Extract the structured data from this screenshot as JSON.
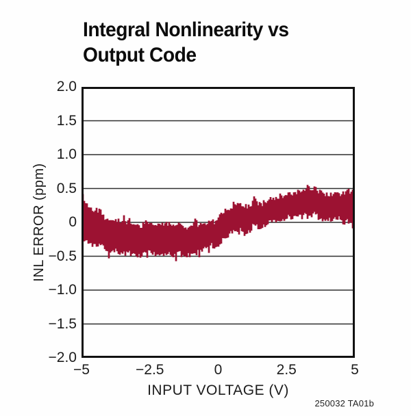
{
  "header": {
    "title_line1": "Integral Nonlinearity vs",
    "title_line2": "Output Code"
  },
  "footnote": "250032 TA01b",
  "chart_data": {
    "type": "area",
    "title": "Integral Nonlinearity vs Output Code",
    "xlabel": "INPUT VOLTAGE (V)",
    "ylabel": "INL ERROR (ppm)",
    "xlim": [
      -5,
      5
    ],
    "ylim": [
      -2.0,
      2.0
    ],
    "xticks": [
      "−5",
      "−2.5",
      "0",
      "2.5",
      "5"
    ],
    "yticks": [
      "2.0",
      "1.5",
      "1.0",
      "0.5",
      "0",
      "−0.5",
      "−1.0",
      "−1.5",
      "−2.0"
    ],
    "grid": "horizontal-only",
    "legend": "none",
    "trace_color": "#9C1232",
    "frame_color": "#111111",
    "grid_color": "#2e2e2e",
    "series": [
      {
        "name": "INL error noisy band (envelope: x, lower ppm, upper ppm)",
        "envelope": [
          [
            -5.0,
            -0.18,
            0.44
          ],
          [
            -4.93,
            -0.26,
            0.3
          ],
          [
            -4.7,
            -0.3,
            0.22
          ],
          [
            -4.5,
            -0.33,
            0.18
          ],
          [
            -4.2,
            -0.37,
            0.1
          ],
          [
            -4.0,
            -0.4,
            0.06
          ],
          [
            -3.75,
            -0.44,
            0.02
          ],
          [
            -3.65,
            -0.48,
            0.01
          ],
          [
            -3.4,
            -0.45,
            0.0
          ],
          [
            -3.0,
            -0.46,
            -0.02
          ],
          [
            -2.5,
            -0.47,
            -0.03
          ],
          [
            -2.0,
            -0.48,
            -0.03
          ],
          [
            -1.5,
            -0.47,
            -0.04
          ],
          [
            -1.2,
            -0.46,
            -0.05
          ],
          [
            -1.0,
            -0.45,
            -0.04
          ],
          [
            -0.7,
            -0.43,
            -0.03
          ],
          [
            -0.4,
            -0.4,
            -0.02
          ],
          [
            -0.15,
            -0.36,
            0.02
          ],
          [
            0.0,
            -0.3,
            0.12
          ],
          [
            0.2,
            -0.22,
            0.18
          ],
          [
            0.4,
            -0.17,
            0.22
          ],
          [
            0.7,
            -0.13,
            0.24
          ],
          [
            1.0,
            -0.11,
            0.26
          ],
          [
            1.3,
            -0.08,
            0.29
          ],
          [
            1.6,
            -0.05,
            0.31
          ],
          [
            2.0,
            -0.02,
            0.33
          ],
          [
            2.4,
            0.02,
            0.36
          ],
          [
            2.8,
            0.05,
            0.4
          ],
          [
            3.1,
            0.08,
            0.44
          ],
          [
            3.35,
            0.1,
            0.53
          ],
          [
            3.5,
            0.11,
            0.49
          ],
          [
            3.9,
            0.06,
            0.45
          ],
          [
            4.2,
            0.07,
            0.44
          ],
          [
            4.5,
            0.03,
            0.43
          ],
          [
            4.8,
            0.01,
            0.46
          ],
          [
            5.0,
            -0.08,
            0.44
          ]
        ]
      }
    ]
  }
}
